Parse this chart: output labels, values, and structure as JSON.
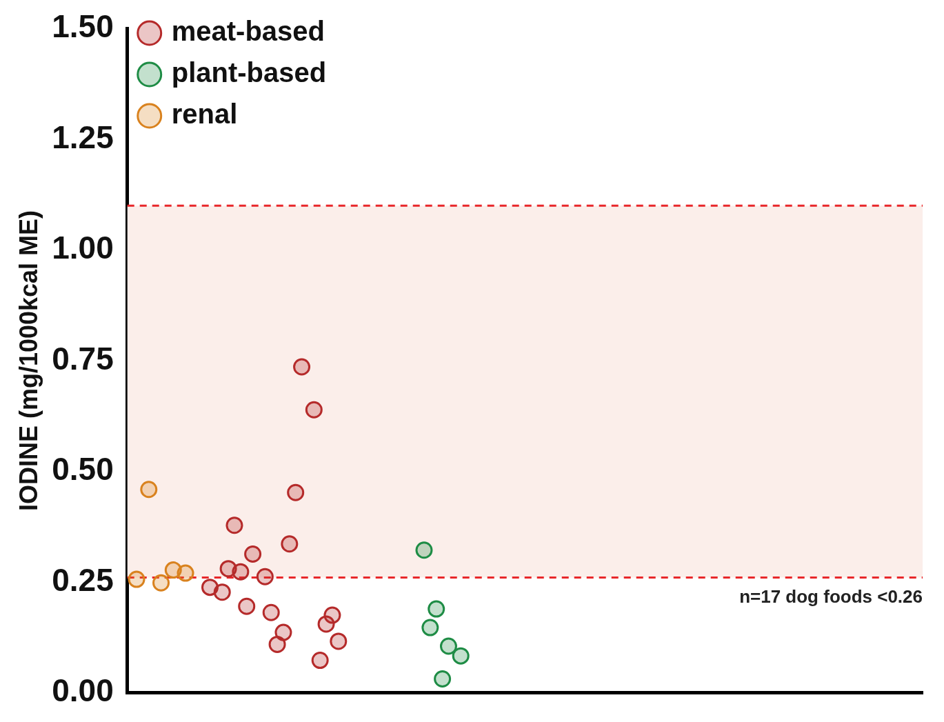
{
  "chart_data": {
    "type": "scatter",
    "ylabel": "IODINE (mg/1000kcal ME)",
    "ylim": [
      0,
      1.5
    ],
    "yticks": [
      {
        "value": 0,
        "label": "0.00"
      },
      {
        "value": 0.25,
        "label": "0.25"
      },
      {
        "value": 0.5,
        "label": "0.50"
      },
      {
        "value": 0.75,
        "label": "0.75"
      },
      {
        "value": 1,
        "label": "1.00"
      },
      {
        "value": 1.25,
        "label": "1.25"
      },
      {
        "value": 1.5,
        "label": "1.50"
      }
    ],
    "tick_labels": "y",
    "grid": false,
    "legend": "top left",
    "marker": "circle",
    "categories": [
      null,
      null,
      null,
      null,
      null,
      null,
      null,
      null,
      null,
      null,
      null,
      null,
      null,
      null,
      null,
      null,
      null,
      null,
      null,
      null,
      null,
      null,
      null,
      null,
      null,
      null,
      null,
      null,
      null,
      null,
      null,
      null,
      null,
      null,
      null,
      null,
      null,
      null,
      null,
      null,
      null,
      null,
      null,
      null,
      null,
      null,
      null,
      null,
      null,
      null,
      null,
      null,
      null,
      null,
      null,
      null,
      null,
      null,
      null,
      null,
      null,
      null,
      null,
      null,
      null,
      null,
      null,
      null,
      null,
      null,
      null,
      null,
      null,
      null,
      null,
      null,
      null,
      null,
      null,
      null,
      null,
      null,
      null,
      null,
      null,
      null,
      null,
      null,
      null,
      null,
      null,
      null,
      null,
      null,
      null,
      null,
      null,
      null,
      null,
      null,
      null,
      null,
      null,
      null,
      null,
      null,
      null,
      null,
      null,
      null,
      null,
      null,
      null,
      null,
      null,
      null,
      null,
      null,
      null,
      null,
      null,
      null,
      null,
      null,
      null,
      null,
      null,
      null,
      null,
      null
    ],
    "series": [
      {
        "name": "meat-based",
        "color": "#b52a2a",
        "values": [
          null,
          null,
          null,
          null,
          null,
          null,
          null,
          null,
          null,
          null,
          null,
          null,
          null,
          0.238,
          null,
          0.227,
          0.28,
          0.378,
          0.273,
          0.195,
          0.313,
          null,
          0.262,
          0.181,
          0.109,
          0.136,
          0.336,
          0.452,
          0.736,
          null,
          0.639,
          0.073,
          0.155,
          0.175,
          0.116,
          null,
          null,
          null,
          null,
          null,
          null,
          null,
          null,
          null,
          null,
          null,
          null,
          null,
          null,
          null,
          null,
          null,
          null,
          null,
          null,
          null,
          null,
          null,
          null,
          null,
          null,
          null,
          null,
          null,
          null,
          null,
          null,
          null,
          null,
          null,
          null,
          null,
          null,
          null,
          null,
          null,
          null,
          null,
          null,
          null,
          null,
          null,
          null,
          null,
          null,
          null,
          null,
          null,
          null,
          null,
          null,
          null,
          null,
          null,
          null,
          null,
          null,
          null,
          null,
          null,
          null,
          null,
          null,
          null,
          null,
          null,
          null,
          null,
          null,
          null,
          null,
          null,
          null,
          null,
          null,
          null,
          null,
          null,
          null,
          null,
          null,
          null,
          null,
          null,
          null,
          null,
          null,
          null,
          null,
          null
        ]
      },
      {
        "name": "plant-based",
        "color": "#1e8c45",
        "values": [
          null,
          null,
          null,
          null,
          null,
          null,
          null,
          null,
          null,
          null,
          null,
          null,
          null,
          null,
          null,
          null,
          null,
          null,
          null,
          null,
          null,
          null,
          null,
          null,
          null,
          null,
          null,
          null,
          null,
          null,
          null,
          null,
          null,
          null,
          null,
          null,
          null,
          null,
          null,
          null,
          null,
          null,
          null,
          null,
          null,
          null,
          null,
          null,
          0.322,
          0.147,
          0.189,
          0.031,
          0.105,
          null,
          0.083,
          null,
          null,
          null,
          null,
          null,
          null,
          null,
          null,
          null,
          null,
          null,
          null,
          null,
          null,
          null,
          null,
          null,
          null,
          null,
          null,
          null,
          null,
          null,
          null,
          null,
          null,
          null,
          null,
          null,
          null,
          null,
          null,
          null,
          null,
          null,
          null,
          null,
          null,
          null,
          null,
          null,
          null,
          null,
          null,
          null,
          null,
          null,
          null,
          null,
          null,
          null,
          null,
          null,
          null,
          null,
          null,
          null,
          null,
          null,
          null,
          null,
          null,
          null,
          null,
          null,
          null,
          null,
          null,
          null,
          null,
          null,
          null,
          null,
          null,
          null
        ]
      },
      {
        "name": "renal",
        "color": "#d9821e",
        "values": [
          null,
          0.256,
          null,
          0.459,
          null,
          0.248,
          null,
          0.277,
          null,
          0.27,
          null,
          null,
          null,
          null,
          null,
          null,
          null,
          null,
          null,
          null,
          null,
          null,
          null,
          null,
          null,
          null,
          null,
          null,
          null,
          null,
          null,
          null,
          null,
          null,
          null,
          null,
          null,
          null,
          null,
          null,
          null,
          null,
          null,
          null,
          null,
          null,
          null,
          null,
          null,
          null,
          null,
          null,
          null,
          null,
          null,
          null,
          null,
          null,
          null,
          null,
          null,
          null,
          null,
          null,
          null,
          null,
          null,
          null,
          null,
          null,
          null,
          null,
          null,
          null,
          null,
          null,
          null,
          null,
          null,
          null,
          null,
          null,
          null,
          null,
          null,
          null,
          null,
          null,
          null,
          null,
          null,
          null,
          null,
          null,
          null,
          null,
          null,
          null,
          null,
          null,
          null,
          null,
          null,
          null,
          null,
          null,
          null,
          null,
          null,
          null,
          null,
          null,
          null,
          null,
          null,
          null,
          null,
          null,
          null,
          null,
          null,
          null,
          null,
          null,
          null,
          null,
          null,
          null,
          null,
          null
        ]
      }
    ],
    "ref_lines": [
      {
        "axis": "y",
        "value": 1.1,
        "color": "#e8272a",
        "line_style": "dashed"
      },
      {
        "axis": "y",
        "value": 0.26,
        "color": "#e8272a",
        "line_style": "dashed"
      }
    ],
    "bands": [
      {
        "axis": "y",
        "from": 0.26,
        "to": 1.1,
        "color": "#fbeeea"
      }
    ],
    "annotations": [
      "n=17 dog foods <0.26"
    ]
  }
}
